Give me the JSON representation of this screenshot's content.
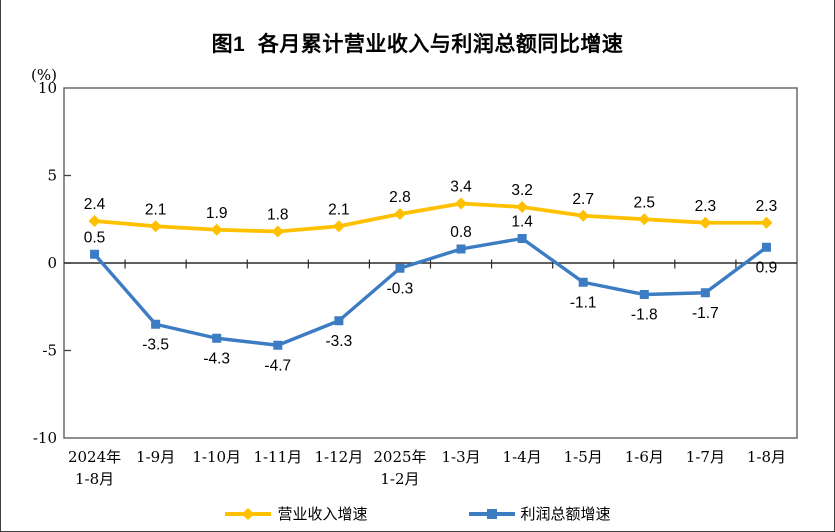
{
  "figure": {
    "title": "图1  各月累计营业收入与利润总额同比增速"
  },
  "y_axis": {
    "unit_label": "(%)",
    "ticks": [
      10,
      5,
      0,
      -5,
      -10
    ]
  },
  "chart_data": {
    "type": "line",
    "title": "图1  各月累计营业收入与利润总额同比增速",
    "x_categories": [
      [
        "2024年",
        "1-8月"
      ],
      [
        "1-9月"
      ],
      [
        "1-10月"
      ],
      [
        "1-11月"
      ],
      [
        "1-12月"
      ],
      [
        "2025年",
        "1-2月"
      ],
      [
        "1-3月"
      ],
      [
        "1-4月"
      ],
      [
        "1-5月"
      ],
      [
        "1-6月"
      ],
      [
        "1-7月"
      ],
      [
        "1-8月"
      ]
    ],
    "ylim": [
      -10,
      10
    ],
    "y_ticks": [
      10,
      5,
      0,
      -5,
      -10
    ],
    "grid": "off",
    "legend_position": "bottom",
    "series": [
      {
        "name": "营业收入增速",
        "color": "#FFC000",
        "marker": "diamond",
        "values": [
          2.4,
          2.1,
          1.9,
          1.8,
          2.1,
          2.8,
          3.4,
          3.2,
          2.7,
          2.5,
          2.3,
          2.3
        ],
        "label_side": [
          "above",
          "above",
          "above",
          "above",
          "above",
          "above",
          "above",
          "above",
          "above",
          "above",
          "above",
          "above"
        ]
      },
      {
        "name": "利润总额增速",
        "color": "#3C7CC3",
        "marker": "square",
        "values": [
          0.5,
          -3.5,
          -4.3,
          -4.7,
          -3.3,
          -0.3,
          0.8,
          1.4,
          -1.1,
          -1.8,
          -1.7,
          0.9
        ],
        "label_side": [
          "above",
          "below",
          "below",
          "below",
          "below",
          "below",
          "above",
          "above",
          "below",
          "below",
          "below",
          "below"
        ]
      }
    ]
  }
}
